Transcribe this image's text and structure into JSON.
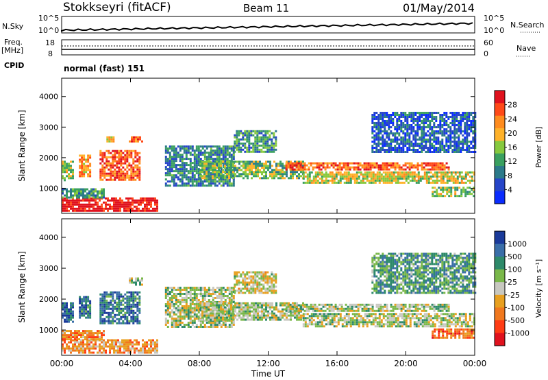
{
  "header": {
    "title": "Stokkseyri (fitACF)",
    "beam": "Beam 11",
    "date": "01/May/2014",
    "cpid": "normal (fast) 151"
  },
  "labels": {
    "nsky": "N.Sky",
    "nsearch": "N.Search",
    "freq": "Freq.",
    "mhz": "[MHz]",
    "nave": "Nave",
    "cpid": "CPID",
    "nsky_ticks": [
      "10^5",
      "10^0"
    ],
    "nsearch_ticks": [
      "10^5",
      "10^0"
    ],
    "freq_ticks": [
      "18",
      "8"
    ],
    "nave_ticks": [
      "60",
      "0"
    ]
  },
  "chart_data": [
    {
      "type": "heatmap",
      "name_id": "power",
      "xlabel": "",
      "ylabel": "Slant Range [km]",
      "xlim": [
        0,
        24
      ],
      "ylim": [
        180,
        4600
      ],
      "yticks": [
        1000,
        2000,
        3000,
        4000
      ],
      "colorbar": {
        "label": "Power [dB]",
        "ticks": [
          "28",
          "24",
          "20",
          "16",
          "12",
          "8",
          "4"
        ],
        "colors": [
          "#e0121e",
          "#ff4a18",
          "#ff8c1e",
          "#ffb22a",
          "#86c93e",
          "#3aa060",
          "#2c7a8a",
          "#2645c8",
          "#0a2cff"
        ]
      },
      "regions": [
        {
          "t0": 0.0,
          "t1": 5.5,
          "r0": 280,
          "r1": 700,
          "level": 0.95
        },
        {
          "t0": 0.0,
          "t1": 2.4,
          "r0": 700,
          "r1": 1000,
          "level": 0.35
        },
        {
          "t0": 0.0,
          "t1": 0.6,
          "r0": 1250,
          "r1": 1900,
          "level": 0.5
        },
        {
          "t0": 1.0,
          "t1": 1.6,
          "r0": 1400,
          "r1": 2100,
          "level": 0.7
        },
        {
          "t0": 2.2,
          "t1": 4.5,
          "r0": 1250,
          "r1": 2250,
          "level": 0.8
        },
        {
          "t0": 2.6,
          "t1": 3.0,
          "r0": 2500,
          "r1": 2700,
          "level": 0.6
        },
        {
          "t0": 3.9,
          "t1": 4.7,
          "r0": 2500,
          "r1": 2700,
          "level": 0.8
        },
        {
          "t0": 6.0,
          "t1": 10.0,
          "r0": 1100,
          "r1": 2400,
          "level": 0.3
        },
        {
          "t0": 8.0,
          "t1": 14.0,
          "r0": 1350,
          "r1": 1900,
          "level": 0.45
        },
        {
          "t0": 10.0,
          "t1": 12.5,
          "r0": 2200,
          "r1": 2900,
          "level": 0.35
        },
        {
          "t0": 13.0,
          "t1": 22.5,
          "r0": 1600,
          "r1": 1850,
          "level": 0.8
        },
        {
          "t0": 14.0,
          "t1": 24.0,
          "r0": 1150,
          "r1": 1550,
          "level": 0.55
        },
        {
          "t0": 18.0,
          "t1": 24.0,
          "r0": 2200,
          "r1": 3500,
          "level": 0.2
        },
        {
          "t0": 21.5,
          "t1": 24.0,
          "r0": 750,
          "r1": 1050,
          "level": 0.5
        }
      ]
    },
    {
      "type": "heatmap",
      "name_id": "velocity",
      "xlabel": "Time UT",
      "ylabel": "Slant Range [km]",
      "xlim": [
        0,
        24
      ],
      "ylim": [
        180,
        4600
      ],
      "yticks": [
        1000,
        2000,
        3000,
        4000
      ],
      "xticks": [
        "00:00",
        "04:00",
        "08:00",
        "12:00",
        "16:00",
        "20:00",
        "00:00"
      ],
      "colorbar": {
        "label": "Velocity [m s⁻¹]",
        "ticks": [
          "1000",
          "500",
          "100",
          "25",
          "-25",
          "-100",
          "-500",
          "-1000"
        ],
        "colors": [
          "#1a3a9a",
          "#3a6ea8",
          "#2e8a6a",
          "#7ab84a",
          "#c8c8c0",
          "#e8a020",
          "#f0781e",
          "#ff3c14",
          "#e0121e"
        ]
      },
      "regions": [
        {
          "t0": 0.0,
          "t1": 5.5,
          "r0": 280,
          "r1": 700,
          "level": 0.35
        },
        {
          "t0": 0.0,
          "t1": 2.4,
          "r0": 700,
          "r1": 1000,
          "level": 0.3
        },
        {
          "t0": 0.0,
          "t1": 0.6,
          "r0": 1250,
          "r1": 1900,
          "level": 0.85
        },
        {
          "t0": 1.0,
          "t1": 1.6,
          "r0": 1400,
          "r1": 2100,
          "level": 0.8
        },
        {
          "t0": 2.2,
          "t1": 4.5,
          "r0": 1250,
          "r1": 2250,
          "level": 0.8
        },
        {
          "t0": 3.9,
          "t1": 4.7,
          "r0": 2500,
          "r1": 2700,
          "level": 0.6
        },
        {
          "t0": 6.0,
          "t1": 10.0,
          "r0": 1100,
          "r1": 2400,
          "level": 0.55
        },
        {
          "t0": 8.0,
          "t1": 14.0,
          "r0": 1350,
          "r1": 1900,
          "level": 0.55
        },
        {
          "t0": 10.0,
          "t1": 12.5,
          "r0": 2200,
          "r1": 2900,
          "level": 0.5
        },
        {
          "t0": 13.0,
          "t1": 22.5,
          "r0": 1600,
          "r1": 1850,
          "level": 0.55
        },
        {
          "t0": 14.0,
          "t1": 24.0,
          "r0": 1150,
          "r1": 1550,
          "level": 0.55
        },
        {
          "t0": 18.0,
          "t1": 24.0,
          "r0": 2200,
          "r1": 3500,
          "level": 0.7
        },
        {
          "t0": 21.5,
          "t1": 24.0,
          "r0": 750,
          "r1": 1050,
          "level": 0.25
        }
      ]
    }
  ]
}
